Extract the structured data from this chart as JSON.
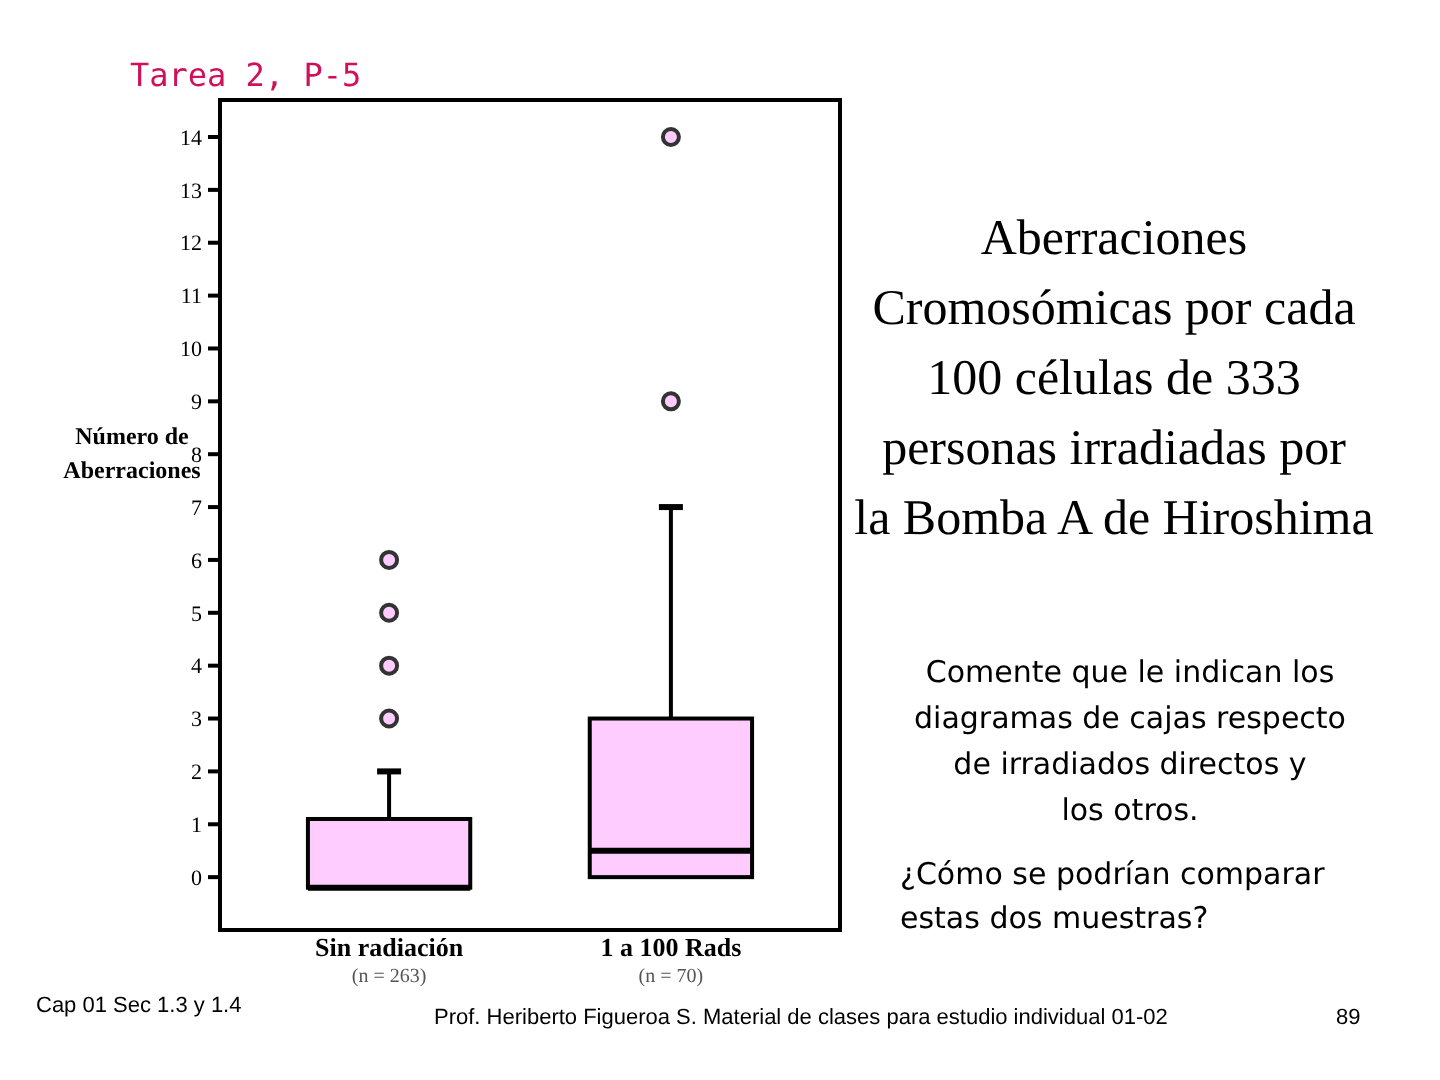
{
  "chart_data": {
    "type": "box",
    "title": "Aberraciones Cromosómicas por cada 100 células de 333 personas irradiadas por la Bomba A de Hiroshima",
    "subtitle": "Tarea 2, P-5",
    "ylabel": "Número de Aberraciones",
    "categories": [
      "Sin radiación (n = 263)",
      "1 a 100 Rads (n = 70)"
    ],
    "boxes": [
      {
        "low": -0.2,
        "q1": -0.2,
        "median": -0.2,
        "q3": 1.1,
        "high": 2,
        "outliers": [
          3,
          4,
          5,
          6
        ]
      },
      {
        "low": 0,
        "q1": 0,
        "median": 0.5,
        "q3": 3,
        "high": 7,
        "outliers": [
          9,
          14
        ]
      }
    ],
    "color": "#ffccff",
    "ylim": [
      -1,
      14.7
    ],
    "yticks": [
      0,
      1,
      2,
      3,
      4,
      5,
      6,
      7,
      8,
      9,
      10,
      11,
      12,
      13,
      14
    ],
    "grid": false,
    "annotations": [
      "Comente que le indican los diagramas de cajas respecto de irradiados directos y los otros.",
      "¿Cómo se podrían comparar estas dos muestras?",
      "Cap 01 Sec 1.3 y 1.4",
      "Prof. Heriberto Figueroa S. Material de clases para estudio individual 01-02",
      "89"
    ]
  }
}
